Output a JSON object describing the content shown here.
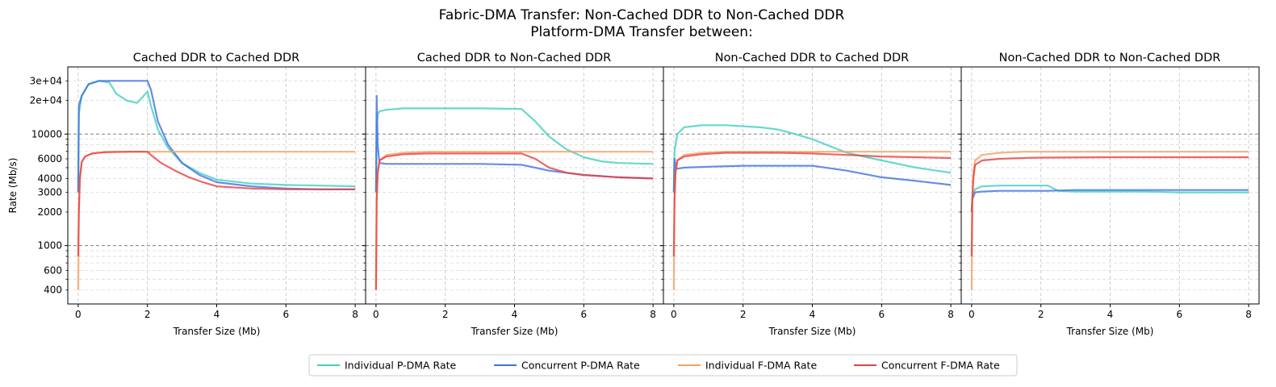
{
  "figure": {
    "title_line1": "Fabric-DMA Transfer: Non-Cached DDR to Non-Cached DDR",
    "title_line2": "Platform-DMA Transfer between:"
  },
  "colors": {
    "ind_pdma": "#40d0c0",
    "con_pdma": "#4070e0",
    "ind_fdma": "#f5a060",
    "con_fdma": "#e84040"
  },
  "chart_data": {
    "type": "line",
    "yscale": "log",
    "ylim": [
      300,
      40000
    ],
    "xlim": [
      -0.3,
      8.3
    ],
    "xlabel": "Transfer Size (Mb)",
    "ylabel": "Rate (Mb/s)",
    "xticks": [
      0,
      2,
      4,
      6,
      8
    ],
    "yticks": [
      {
        "value": 400,
        "label": "400"
      },
      {
        "value": 600,
        "label": "600"
      },
      {
        "value": 1000,
        "label": "1000"
      },
      {
        "value": 2000,
        "label": "2000"
      },
      {
        "value": 3000,
        "label": "3000"
      },
      {
        "value": 4000,
        "label": "4000"
      },
      {
        "value": 6000,
        "label": "6000"
      },
      {
        "value": 10000,
        "label": "10000"
      },
      {
        "value": 20000,
        "label": "2e+04"
      },
      {
        "value": 30000,
        "label": "3e+04"
      }
    ],
    "grid": true,
    "legend": {
      "placement": "bottom-center",
      "entries": [
        {
          "key": "ind_pdma",
          "label": "Individual P-DMA Rate"
        },
        {
          "key": "con_pdma",
          "label": "Concurrent P-DMA Rate"
        },
        {
          "key": "ind_fdma",
          "label": "Individual F-DMA Rate"
        },
        {
          "key": "con_fdma",
          "label": "Concurrent F-DMA Rate"
        }
      ]
    },
    "panels": [
      {
        "title": "Cached DDR to Cached DDR",
        "series": [
          {
            "key": "ind_pdma",
            "x": [
              0,
              0.02,
              0.1,
              0.3,
              0.6,
              0.9,
              1.1,
              1.4,
              1.7,
              2.0,
              2.1,
              2.3,
              2.6,
              3.0,
              3.5,
              4.0,
              5.0,
              6.0,
              7.0,
              8.0
            ],
            "y": [
              3000,
              15000,
              22000,
              28000,
              30000,
              29000,
              23000,
              20000,
              19000,
              24000,
              18000,
              11000,
              7500,
              5500,
              4500,
              3900,
              3600,
              3500,
              3450,
              3400
            ]
          },
          {
            "key": "con_pdma",
            "x": [
              0,
              0.02,
              0.1,
              0.3,
              0.6,
              1.0,
              1.5,
              2.0,
              2.1,
              2.3,
              2.6,
              3.0,
              3.5,
              4.0,
              5.0,
              6.0,
              7.0,
              8.0
            ],
            "y": [
              3000,
              18000,
              22000,
              28000,
              30000,
              30000,
              30000,
              30000,
              25000,
              13000,
              8000,
              5500,
              4300,
              3700,
              3400,
              3250,
              3200,
              3200
            ]
          },
          {
            "key": "ind_fdma",
            "x": [
              0,
              0.02,
              0.05,
              0.1,
              0.2,
              0.4,
              0.8,
              1.5,
              2.0,
              4.0,
              8.0
            ],
            "y": [
              400,
              2000,
              4000,
              5600,
              6300,
              6700,
              6900,
              6950,
              6950,
              6950,
              6950
            ]
          },
          {
            "key": "con_fdma",
            "x": [
              0,
              0.02,
              0.05,
              0.1,
              0.2,
              0.4,
              0.8,
              1.5,
              2.0,
              2.1,
              2.4,
              2.8,
              3.2,
              3.6,
              4.0,
              5.0,
              6.0,
              7.0,
              8.0
            ],
            "y": [
              800,
              2000,
              4000,
              5600,
              6300,
              6700,
              6900,
              6950,
              6950,
              6500,
              5500,
              4700,
              4100,
              3700,
              3400,
              3250,
              3200,
              3200,
              3200
            ]
          }
        ]
      },
      {
        "title": "Cached DDR to Non-Cached DDR",
        "series": [
          {
            "key": "ind_pdma",
            "x": [
              0,
              0.02,
              0.05,
              0.1,
              0.3,
              0.8,
              2.0,
              3.0,
              4.2,
              4.6,
              5.0,
              5.5,
              6.0,
              6.5,
              7.0,
              8.0
            ],
            "y": [
              3000,
              12000,
              15000,
              16000,
              16500,
              17000,
              17000,
              17000,
              16800,
              13000,
              9500,
              7300,
              6200,
              5700,
              5500,
              5400
            ]
          },
          {
            "key": "con_pdma",
            "x": [
              0,
              0.02,
              0.05,
              0.1,
              0.3,
              1.0,
              2.0,
              3.0,
              4.2,
              4.6,
              5.0,
              5.5,
              6.0,
              7.0,
              8.0
            ],
            "y": [
              3000,
              22000,
              8000,
              5500,
              5400,
              5400,
              5400,
              5400,
              5300,
              5000,
              4700,
              4500,
              4300,
              4100,
              4000
            ]
          },
          {
            "key": "ind_fdma",
            "x": [
              0,
              0.02,
              0.05,
              0.1,
              0.3,
              0.8,
              1.5,
              2.0,
              4.0,
              8.0
            ],
            "y": [
              400,
              2500,
              4500,
              5800,
              6500,
              6800,
              6950,
              6950,
              6950,
              6950
            ]
          },
          {
            "key": "con_fdma",
            "x": [
              0,
              0.02,
              0.05,
              0.1,
              0.3,
              0.8,
              1.5,
              2.0,
              3.0,
              4.2,
              4.6,
              5.0,
              5.5,
              6.0,
              7.0,
              8.0
            ],
            "y": [
              400,
              2500,
              4500,
              5800,
              6300,
              6600,
              6700,
              6700,
              6700,
              6700,
              6000,
              5000,
              4500,
              4300,
              4100,
              4000
            ]
          }
        ]
      },
      {
        "title": "Non-Cached DDR to Cached DDR",
        "series": [
          {
            "key": "ind_pdma",
            "x": [
              0,
              0.02,
              0.1,
              0.3,
              0.8,
              1.5,
              2.5,
              3.0,
              3.5,
              4.0,
              4.5,
              5.0,
              6.0,
              7.0,
              8.0
            ],
            "y": [
              3000,
              7000,
              10000,
              11500,
              12000,
              12000,
              11500,
              11000,
              10000,
              9000,
              7800,
              6800,
              5800,
              5000,
              4500
            ]
          },
          {
            "key": "con_pdma",
            "x": [
              0,
              0.02,
              0.05,
              0.1,
              0.3,
              1.0,
              2.0,
              3.0,
              4.0,
              4.2,
              5.0,
              6.0,
              7.0,
              8.0
            ],
            "y": [
              3000,
              6000,
              5000,
              4900,
              5000,
              5100,
              5200,
              5200,
              5200,
              5100,
              4700,
              4100,
              3800,
              3500
            ]
          },
          {
            "key": "ind_fdma",
            "x": [
              0,
              0.02,
              0.05,
              0.1,
              0.3,
              0.8,
              1.5,
              2.0,
              4.0,
              8.0
            ],
            "y": [
              400,
              2500,
              4500,
              5800,
              6500,
              6800,
              6950,
              6950,
              6950,
              6950
            ]
          },
          {
            "key": "con_fdma",
            "x": [
              0,
              0.02,
              0.05,
              0.1,
              0.3,
              0.8,
              1.5,
              2.0,
              3.0,
              4.0,
              5.0,
              6.0,
              7.0,
              8.0
            ],
            "y": [
              800,
              2500,
              4500,
              5800,
              6300,
              6600,
              6800,
              6800,
              6800,
              6700,
              6500,
              6300,
              6200,
              6100
            ]
          }
        ]
      },
      {
        "title": "Non-Cached DDR to Non-Cached DDR",
        "series": [
          {
            "key": "ind_pdma",
            "x": [
              0,
              0.02,
              0.1,
              0.3,
              0.8,
              1.5,
              2.2,
              2.5,
              3.0,
              4.0,
              5.0,
              6.0,
              7.0,
              8.0
            ],
            "y": [
              2000,
              2800,
              3200,
              3400,
              3450,
              3450,
              3450,
              3100,
              3050,
              3050,
              3050,
              3000,
              3000,
              3000
            ]
          },
          {
            "key": "con_pdma",
            "x": [
              0,
              0.02,
              0.1,
              0.3,
              0.8,
              1.5,
              2.2,
              3.0,
              4.0,
              5.0,
              6.0,
              7.0,
              8.0
            ],
            "y": [
              2000,
              2600,
              3000,
              3050,
              3100,
              3100,
              3100,
              3150,
              3150,
              3150,
              3150,
              3150,
              3150
            ]
          },
          {
            "key": "ind_fdma",
            "x": [
              0,
              0.02,
              0.05,
              0.1,
              0.3,
              0.8,
              1.5,
              2.0,
              4.0,
              8.0
            ],
            "y": [
              400,
              2500,
              4500,
              5800,
              6500,
              6800,
              6950,
              6950,
              6950,
              6950
            ]
          },
          {
            "key": "con_fdma",
            "x": [
              0,
              0.02,
              0.05,
              0.1,
              0.3,
              0.8,
              1.5,
              2.0,
              4.0,
              6.0,
              8.0
            ],
            "y": [
              800,
              2500,
              4000,
              5300,
              5800,
              6000,
              6100,
              6150,
              6200,
              6200,
              6200
            ]
          }
        ]
      }
    ]
  }
}
